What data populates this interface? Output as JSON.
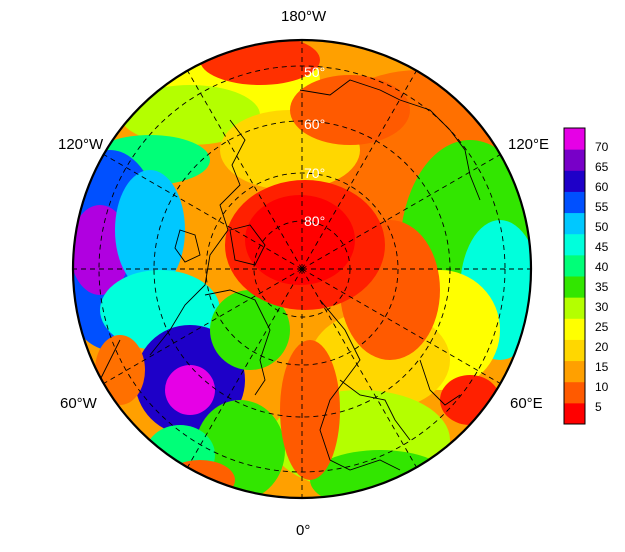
{
  "map": {
    "projection": "north-polar-stereographic",
    "lon_labels": {
      "top": "180°W",
      "upper_left": "120°W",
      "upper_right": "120°E",
      "lower_left": "60°W",
      "lower_right": "60°E",
      "bottom": "0°"
    },
    "lat_labels": [
      "50°",
      "60°",
      "70°",
      "80°"
    ],
    "lat_rings": [
      50,
      60,
      70,
      80
    ],
    "gridline_style": "dashed",
    "lat_label_color": "#ffffff",
    "frame_color": "#000000"
  },
  "colorbar": {
    "ticks": [
      "5",
      "10",
      "15",
      "20",
      "25",
      "30",
      "35",
      "40",
      "45",
      "50",
      "55",
      "60",
      "65",
      "70"
    ],
    "min": 1,
    "max": 75,
    "colors": [
      "#ff0000",
      "#ff5a00",
      "#ffa000",
      "#ffd700",
      "#ffff00",
      "#b4ff00",
      "#32e600",
      "#00ff78",
      "#00ffdc",
      "#00c8ff",
      "#0050ff",
      "#1e00c8",
      "#7800c8",
      "#e600e6"
    ]
  }
}
